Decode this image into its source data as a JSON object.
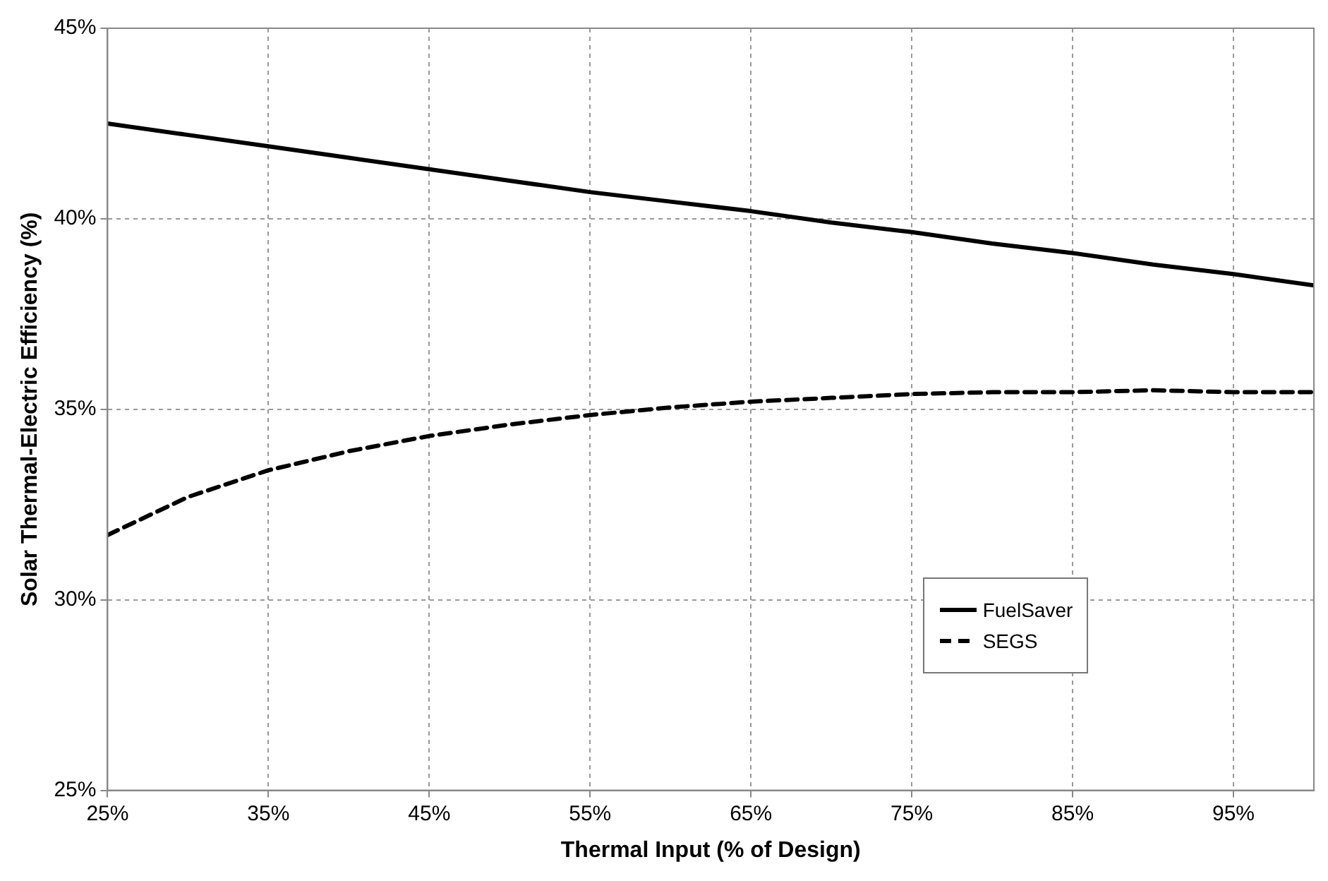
{
  "chart_data": {
    "type": "line",
    "xlabel": "Thermal Input (% of Design)",
    "ylabel": "Solar Thermal-Electric Efficiency (%)",
    "x": [
      25,
      30,
      35,
      40,
      45,
      50,
      55,
      60,
      65,
      70,
      75,
      80,
      85,
      90,
      95,
      100
    ],
    "series": [
      {
        "name": "FuelSaver",
        "color": "#000000",
        "line_style": "solid",
        "values": [
          42.5,
          42.2,
          41.9,
          41.6,
          41.3,
          41.0,
          40.7,
          40.45,
          40.2,
          39.9,
          39.65,
          39.35,
          39.1,
          38.8,
          38.55,
          38.25
        ]
      },
      {
        "name": "SEGS",
        "color": "#000000",
        "line_style": "dashed",
        "values": [
          31.7,
          32.7,
          33.4,
          33.9,
          34.3,
          34.6,
          34.85,
          35.05,
          35.2,
          35.3,
          35.4,
          35.45,
          35.45,
          35.5,
          35.45,
          35.45
        ]
      }
    ],
    "xlim": [
      25,
      100
    ],
    "xticks": [
      {
        "value": 25,
        "label": "25%"
      },
      {
        "value": 35,
        "label": "35%"
      },
      {
        "value": 45,
        "label": "45%"
      },
      {
        "value": 55,
        "label": "55%"
      },
      {
        "value": 65,
        "label": "65%"
      },
      {
        "value": 75,
        "label": "75%"
      },
      {
        "value": 85,
        "label": "85%"
      },
      {
        "value": 95,
        "label": "95%"
      }
    ],
    "ylim": [
      25,
      45
    ],
    "yticks": [
      {
        "value": 25,
        "label": "25%"
      },
      {
        "value": 30,
        "label": "30%"
      },
      {
        "value": 35,
        "label": "35%"
      },
      {
        "value": 40,
        "label": "40%"
      },
      {
        "value": 45,
        "label": "45%"
      }
    ],
    "grid": true,
    "legend": "bottom right",
    "marker": "none"
  }
}
